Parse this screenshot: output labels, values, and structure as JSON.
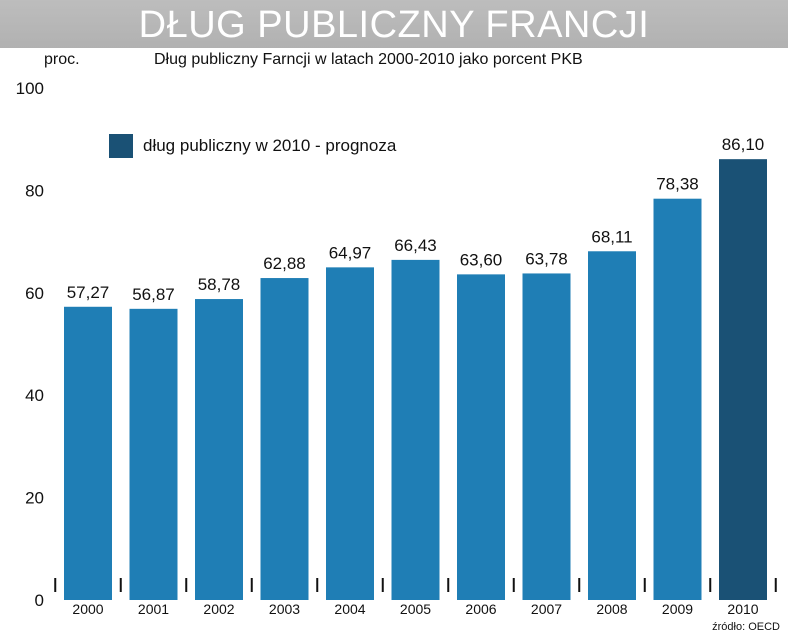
{
  "header": {
    "title": "DŁUG PUBLICZNY FRANCJI",
    "subtitle": "Dług publiczny Farncji w latach 2000-2010 jako porcent PKB",
    "y_unit": "proc."
  },
  "legend": {
    "label": "dług publiczny w 2010 - prognoza",
    "color": "#1a5175"
  },
  "source": "źródło: OECD",
  "colors": {
    "bar": "#1f7eb5",
    "forecast_bar": "#1a5175",
    "banner": "#b8b8b8"
  },
  "chart_data": {
    "type": "bar",
    "title": "Dług publiczny Farncji w latach 2000-2010 jako porcent PKB",
    "ylabel": "proc.",
    "xlabel": "",
    "ylim": [
      0,
      100
    ],
    "yticks": [
      0,
      20,
      40,
      60,
      80,
      100
    ],
    "categories": [
      "2000",
      "2001",
      "2002",
      "2003",
      "2004",
      "2005",
      "2006",
      "2007",
      "2008",
      "2009",
      "2010"
    ],
    "values": [
      57.27,
      56.87,
      58.78,
      62.88,
      64.97,
      66.43,
      63.6,
      63.78,
      68.11,
      78.38,
      86.1
    ],
    "value_labels": [
      "57,27",
      "56,87",
      "58,78",
      "62,88",
      "64,97",
      "66,43",
      "63,60",
      "63,78",
      "68,11",
      "78,38",
      "86,10"
    ],
    "forecast_categories": [
      "2010"
    ],
    "grid": false
  }
}
